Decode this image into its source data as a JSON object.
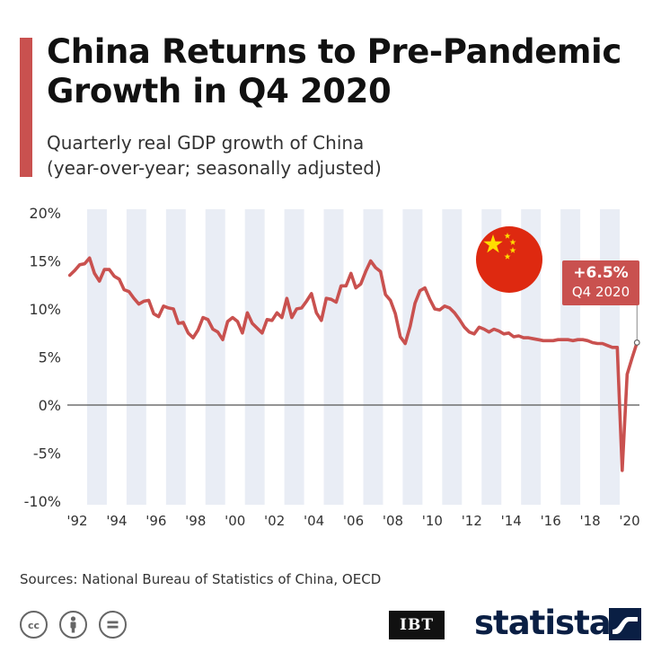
{
  "title_lines": [
    "China Returns to Pre-Pandemic",
    "Growth in Q4 2020"
  ],
  "subtitle_lines": [
    "Quarterly real GDP growth of China",
    "(year-over-year; seasonally adjusted)"
  ],
  "callout": {
    "value": "+6.5%",
    "period": "Q4 2020"
  },
  "source": "Sources: National Bureau of Statistics of China, OECD",
  "logos": {
    "ibt": "IBT",
    "statista": "statista"
  },
  "license_icons": [
    "cc-icon",
    "attribution-icon",
    "no-derivatives-icon"
  ],
  "flag_icon": "china-flag-icon",
  "colors": {
    "accent": "#c9514f",
    "line": "#c9514f",
    "band": "#e9edf5",
    "flag_red": "#de2910",
    "flag_star": "#ffde00",
    "brand_navy": "#0a1f44"
  },
  "chart_data": {
    "type": "line",
    "title": "China Returns to Pre-Pandemic Growth in Q4 2020",
    "xlabel": "",
    "ylabel": "",
    "ylim": [
      -10,
      20
    ],
    "yticks": [
      20,
      15,
      10,
      5,
      0,
      -5,
      -10
    ],
    "ytick_labels": [
      "20%",
      "15%",
      "10%",
      "5%",
      "0%",
      "-5%",
      "-10%"
    ],
    "xticks": [
      1992,
      1994,
      1996,
      1998,
      2000,
      2002,
      2004,
      2006,
      2008,
      2010,
      2012,
      2014,
      2016,
      2018,
      2020
    ],
    "xtick_labels": [
      "'92",
      "'94",
      "'96",
      "'98",
      "'00",
      "'02",
      "'04",
      "'06",
      "'08",
      "'10",
      "'12",
      "'14",
      "'16",
      "'18",
      "'20"
    ],
    "grid": "alternating vertical year bands; zero line",
    "series": [
      {
        "name": "",
        "x": [
          "1992-Q1",
          "1992-Q2",
          "1992-Q3",
          "1992-Q4",
          "1993-Q1",
          "1993-Q2",
          "1993-Q3",
          "1993-Q4",
          "1994-Q1",
          "1994-Q2",
          "1994-Q3",
          "1994-Q4",
          "1995-Q1",
          "1995-Q2",
          "1995-Q3",
          "1995-Q4",
          "1996-Q1",
          "1996-Q2",
          "1996-Q3",
          "1996-Q4",
          "1997-Q1",
          "1997-Q2",
          "1997-Q3",
          "1997-Q4",
          "1998-Q1",
          "1998-Q2",
          "1998-Q3",
          "1998-Q4",
          "1999-Q1",
          "1999-Q2",
          "1999-Q3",
          "1999-Q4",
          "2000-Q1",
          "2000-Q2",
          "2000-Q3",
          "2000-Q4",
          "2001-Q1",
          "2001-Q2",
          "2001-Q3",
          "2001-Q4",
          "2002-Q1",
          "2002-Q2",
          "2002-Q3",
          "2002-Q4",
          "2003-Q1",
          "2003-Q2",
          "2003-Q3",
          "2003-Q4",
          "2004-Q1",
          "2004-Q2",
          "2004-Q3",
          "2004-Q4",
          "2005-Q1",
          "2005-Q2",
          "2005-Q3",
          "2005-Q4",
          "2006-Q1",
          "2006-Q2",
          "2006-Q3",
          "2006-Q4",
          "2007-Q1",
          "2007-Q2",
          "2007-Q3",
          "2007-Q4",
          "2008-Q1",
          "2008-Q2",
          "2008-Q3",
          "2008-Q4",
          "2009-Q1",
          "2009-Q2",
          "2009-Q3",
          "2009-Q4",
          "2010-Q1",
          "2010-Q2",
          "2010-Q3",
          "2010-Q4",
          "2011-Q1",
          "2011-Q2",
          "2011-Q3",
          "2011-Q4",
          "2012-Q1",
          "2012-Q2",
          "2012-Q3",
          "2012-Q4",
          "2013-Q1",
          "2013-Q2",
          "2013-Q3",
          "2013-Q4",
          "2014-Q1",
          "2014-Q2",
          "2014-Q3",
          "2014-Q4",
          "2015-Q1",
          "2015-Q2",
          "2015-Q3",
          "2015-Q4",
          "2016-Q1",
          "2016-Q2",
          "2016-Q3",
          "2016-Q4",
          "2017-Q1",
          "2017-Q2",
          "2017-Q3",
          "2017-Q4",
          "2018-Q1",
          "2018-Q2",
          "2018-Q3",
          "2018-Q4",
          "2019-Q1",
          "2019-Q2",
          "2019-Q3",
          "2019-Q4",
          "2020-Q1",
          "2020-Q2",
          "2020-Q3",
          "2020-Q4"
        ],
        "values": [
          13.5,
          14.0,
          14.6,
          14.7,
          15.3,
          13.7,
          12.9,
          14.1,
          14.1,
          13.4,
          13.1,
          12.0,
          11.8,
          11.1,
          10.5,
          10.8,
          10.9,
          9.5,
          9.2,
          10.3,
          10.1,
          10.0,
          8.5,
          8.6,
          7.5,
          7.0,
          7.8,
          9.1,
          8.9,
          7.9,
          7.6,
          6.8,
          8.7,
          9.1,
          8.7,
          7.5,
          9.6,
          8.5,
          8.0,
          7.5,
          8.9,
          8.8,
          9.6,
          9.1,
          11.1,
          9.1,
          10.0,
          10.1,
          10.8,
          11.6,
          9.6,
          8.8,
          11.1,
          11.0,
          10.7,
          12.4,
          12.4,
          13.7,
          12.2,
          12.6,
          13.9,
          15.0,
          14.3,
          13.9,
          11.5,
          10.9,
          9.5,
          7.1,
          6.4,
          8.2,
          10.6,
          11.9,
          12.2,
          11.0,
          10.0,
          9.9,
          10.3,
          10.1,
          9.6,
          8.9,
          8.1,
          7.6,
          7.4,
          8.1,
          7.9,
          7.6,
          7.9,
          7.7,
          7.4,
          7.5,
          7.1,
          7.2,
          7.0,
          7.0,
          6.9,
          6.8,
          6.7,
          6.7,
          6.7,
          6.8,
          6.8,
          6.8,
          6.7,
          6.8,
          6.8,
          6.7,
          6.5,
          6.4,
          6.4,
          6.2,
          6.0,
          6.0,
          -6.8,
          3.2,
          4.9,
          6.5
        ]
      }
    ],
    "annotations": [
      {
        "text": "+6.5%",
        "subtext": "Q4 2020",
        "x": "2020-Q4",
        "y": 6.5
      }
    ]
  }
}
